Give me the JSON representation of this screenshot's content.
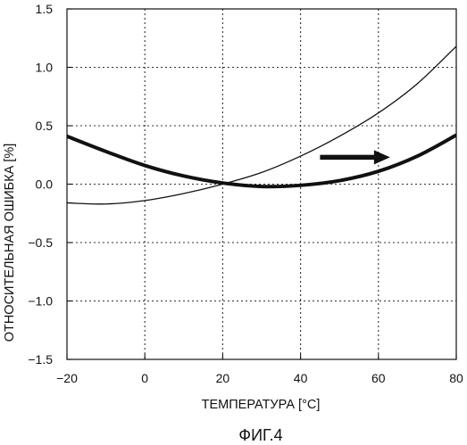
{
  "chart_data": {
    "type": "line",
    "title": "",
    "caption": "ФИГ.4",
    "xlabel": "ТЕМПЕРАТУРА [°C]",
    "ylabel": "ОТНОСИТЕЛЬНАЯ ОШИБКА [%]",
    "xlim": [
      -20,
      80
    ],
    "ylim": [
      -1.5,
      1.5
    ],
    "x_ticks": [
      -20,
      0,
      20,
      40,
      60,
      80
    ],
    "y_ticks": [
      -1.5,
      -1.0,
      -0.5,
      0.0,
      0.5,
      1.0,
      1.5
    ],
    "x_tick_labels": [
      "−20",
      "0",
      "20",
      "40",
      "60",
      "80"
    ],
    "y_tick_labels": [
      "−1.5",
      "−1.0",
      "−0.5",
      "0.0",
      "0.5",
      "1.0",
      "1.5"
    ],
    "grid": true,
    "grid_style": "dotted",
    "series": [
      {
        "style": "thin",
        "x": [
          -20,
          -10,
          0,
          10,
          20,
          30,
          40,
          50,
          60,
          70,
          80
        ],
        "y": [
          -0.16,
          -0.17,
          -0.14,
          -0.08,
          0.0,
          0.1,
          0.24,
          0.41,
          0.61,
          0.86,
          1.18
        ]
      },
      {
        "style": "thick",
        "x": [
          -20,
          -10,
          0,
          10,
          20,
          30,
          40,
          50,
          60,
          70,
          80
        ],
        "y": [
          0.41,
          0.28,
          0.16,
          0.07,
          0.01,
          -0.02,
          -0.01,
          0.03,
          0.11,
          0.24,
          0.42
        ]
      }
    ],
    "annotations": [
      {
        "type": "arrow",
        "direction": "right",
        "from": [
          45,
          0.23
        ],
        "to": [
          63,
          0.23
        ]
      }
    ],
    "colors": {
      "line": "#111111",
      "grid": "#333333",
      "background": "#ffffff"
    }
  }
}
